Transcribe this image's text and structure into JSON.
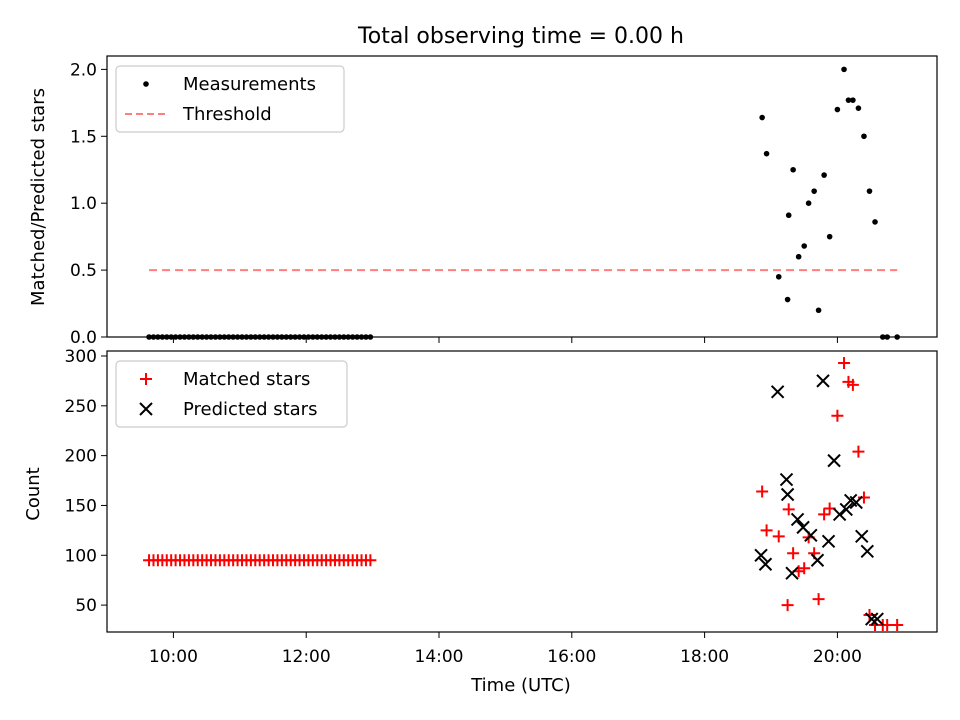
{
  "figure": {
    "title": "Total observing time = 0.00 h"
  },
  "chart_data": [
    {
      "type": "scatter",
      "ylabel": "Matched/Predicted stars",
      "xlabel": "",
      "xlim_hours": [
        9.0,
        21.5
      ],
      "ylim": [
        0,
        2.1
      ],
      "yticks": [
        0.0,
        0.5,
        1.0,
        1.5,
        2.0
      ],
      "ytick_labels": [
        "0.0",
        "0.5",
        "1.0",
        "1.5",
        "2.0"
      ],
      "xtick_labels_shown": false,
      "legend_loc": "upper left",
      "series": [
        {
          "name": "Measurements",
          "marker": "dot",
          "color": "#000000",
          "x": [
            "09:38",
            "09:42",
            "09:46",
            "09:50",
            "09:54",
            "09:58",
            "10:02",
            "10:06",
            "10:10",
            "10:14",
            "10:18",
            "10:22",
            "10:26",
            "10:30",
            "10:34",
            "10:38",
            "10:42",
            "10:46",
            "10:50",
            "10:54",
            "10:58",
            "11:02",
            "11:06",
            "11:10",
            "11:14",
            "11:18",
            "11:22",
            "11:26",
            "11:30",
            "11:34",
            "11:38",
            "11:42",
            "11:46",
            "11:50",
            "11:54",
            "11:58",
            "12:02",
            "12:06",
            "12:10",
            "12:14",
            "12:18",
            "12:22",
            "12:26",
            "12:30",
            "12:34",
            "12:38",
            "12:42",
            "12:46",
            "12:50",
            "12:54",
            "12:58",
            "18:52",
            "18:56",
            "19:07",
            "19:15",
            "19:16",
            "19:20",
            "19:25",
            "19:30",
            "19:34",
            "19:39",
            "19:43",
            "19:48",
            "19:53",
            "20:00",
            "20:06",
            "20:10",
            "20:14",
            "20:19",
            "20:24",
            "20:29",
            "20:34",
            "20:41",
            "20:45",
            "20:54"
          ],
          "y": [
            0,
            0,
            0,
            0,
            0,
            0,
            0,
            0,
            0,
            0,
            0,
            0,
            0,
            0,
            0,
            0,
            0,
            0,
            0,
            0,
            0,
            0,
            0,
            0,
            0,
            0,
            0,
            0,
            0,
            0,
            0,
            0,
            0,
            0,
            0,
            0,
            0,
            0,
            0,
            0,
            0,
            0,
            0,
            0,
            0,
            0,
            0,
            0,
            0,
            0,
            0,
            1.64,
            1.37,
            0.45,
            0.28,
            0.91,
            1.25,
            0.6,
            0.68,
            1.0,
            1.09,
            0.2,
            1.21,
            0.75,
            1.7,
            2.0,
            1.77,
            1.77,
            1.71,
            1.5,
            1.09,
            0.86,
            0.0,
            0.0,
            0.0
          ]
        },
        {
          "name": "Threshold",
          "style": "dashed",
          "color": "#ff7f7f",
          "x": [
            "09:38",
            "20:54"
          ],
          "y": [
            0.5,
            0.5
          ]
        }
      ]
    },
    {
      "type": "scatter",
      "ylabel": "Count",
      "xlabel": "Time (UTC)",
      "xlim_hours": [
        9.0,
        21.5
      ],
      "ylim": [
        23,
        305
      ],
      "yticks": [
        50,
        100,
        150,
        200,
        250,
        300
      ],
      "ytick_labels": [
        "50",
        "100",
        "150",
        "200",
        "250",
        "300"
      ],
      "xticks_hours": [
        10,
        12,
        14,
        16,
        18,
        20
      ],
      "xtick_labels": [
        "10:00",
        "12:00",
        "14:00",
        "16:00",
        "18:00",
        "20:00"
      ],
      "legend_loc": "upper left",
      "series": [
        {
          "name": "Matched stars",
          "marker": "plus",
          "color": "#ff0000",
          "x": [
            "09:38",
            "09:42",
            "09:46",
            "09:50",
            "09:54",
            "09:58",
            "10:02",
            "10:06",
            "10:10",
            "10:14",
            "10:18",
            "10:22",
            "10:26",
            "10:30",
            "10:34",
            "10:38",
            "10:42",
            "10:46",
            "10:50",
            "10:54",
            "10:58",
            "11:02",
            "11:06",
            "11:10",
            "11:14",
            "11:18",
            "11:22",
            "11:26",
            "11:30",
            "11:34",
            "11:38",
            "11:42",
            "11:46",
            "11:50",
            "11:54",
            "11:58",
            "12:02",
            "12:06",
            "12:10",
            "12:14",
            "12:18",
            "12:22",
            "12:26",
            "12:30",
            "12:34",
            "12:38",
            "12:42",
            "12:46",
            "12:50",
            "12:54",
            "12:58",
            "18:52",
            "18:56",
            "19:07",
            "19:15",
            "19:16",
            "19:20",
            "19:25",
            "19:30",
            "19:34",
            "19:39",
            "19:43",
            "19:48",
            "19:53",
            "20:00",
            "20:06",
            "20:10",
            "20:14",
            "20:19",
            "20:24",
            "20:29",
            "20:34",
            "20:41",
            "20:45",
            "20:54"
          ],
          "y": [
            95,
            95,
            95,
            95,
            95,
            95,
            95,
            95,
            95,
            95,
            95,
            95,
            95,
            95,
            95,
            95,
            95,
            95,
            95,
            95,
            95,
            95,
            95,
            95,
            95,
            95,
            95,
            95,
            95,
            95,
            95,
            95,
            95,
            95,
            95,
            95,
            95,
            95,
            95,
            95,
            95,
            95,
            95,
            95,
            95,
            95,
            95,
            95,
            95,
            95,
            95,
            164,
            125,
            119,
            50,
            146,
            102,
            84,
            87,
            118,
            102,
            56,
            141,
            147,
            240,
            293,
            274,
            271,
            204,
            158,
            40,
            30,
            30,
            30,
            30
          ]
        },
        {
          "name": "Predicted stars",
          "marker": "x",
          "color": "#000000",
          "x": [
            "18:51",
            "18:55",
            "19:06",
            "19:14",
            "19:15",
            "19:19",
            "19:24",
            "19:29",
            "19:36",
            "19:42",
            "19:47",
            "19:52",
            "19:57",
            "20:02",
            "20:08",
            "20:12",
            "20:17",
            "20:22",
            "20:27",
            "20:31",
            "20:36"
          ],
          "y": [
            100,
            91,
            264,
            176,
            161,
            82,
            136,
            128,
            120,
            95,
            275,
            114,
            195,
            141,
            146,
            155,
            153,
            119,
            104,
            36,
            36
          ]
        }
      ]
    }
  ]
}
